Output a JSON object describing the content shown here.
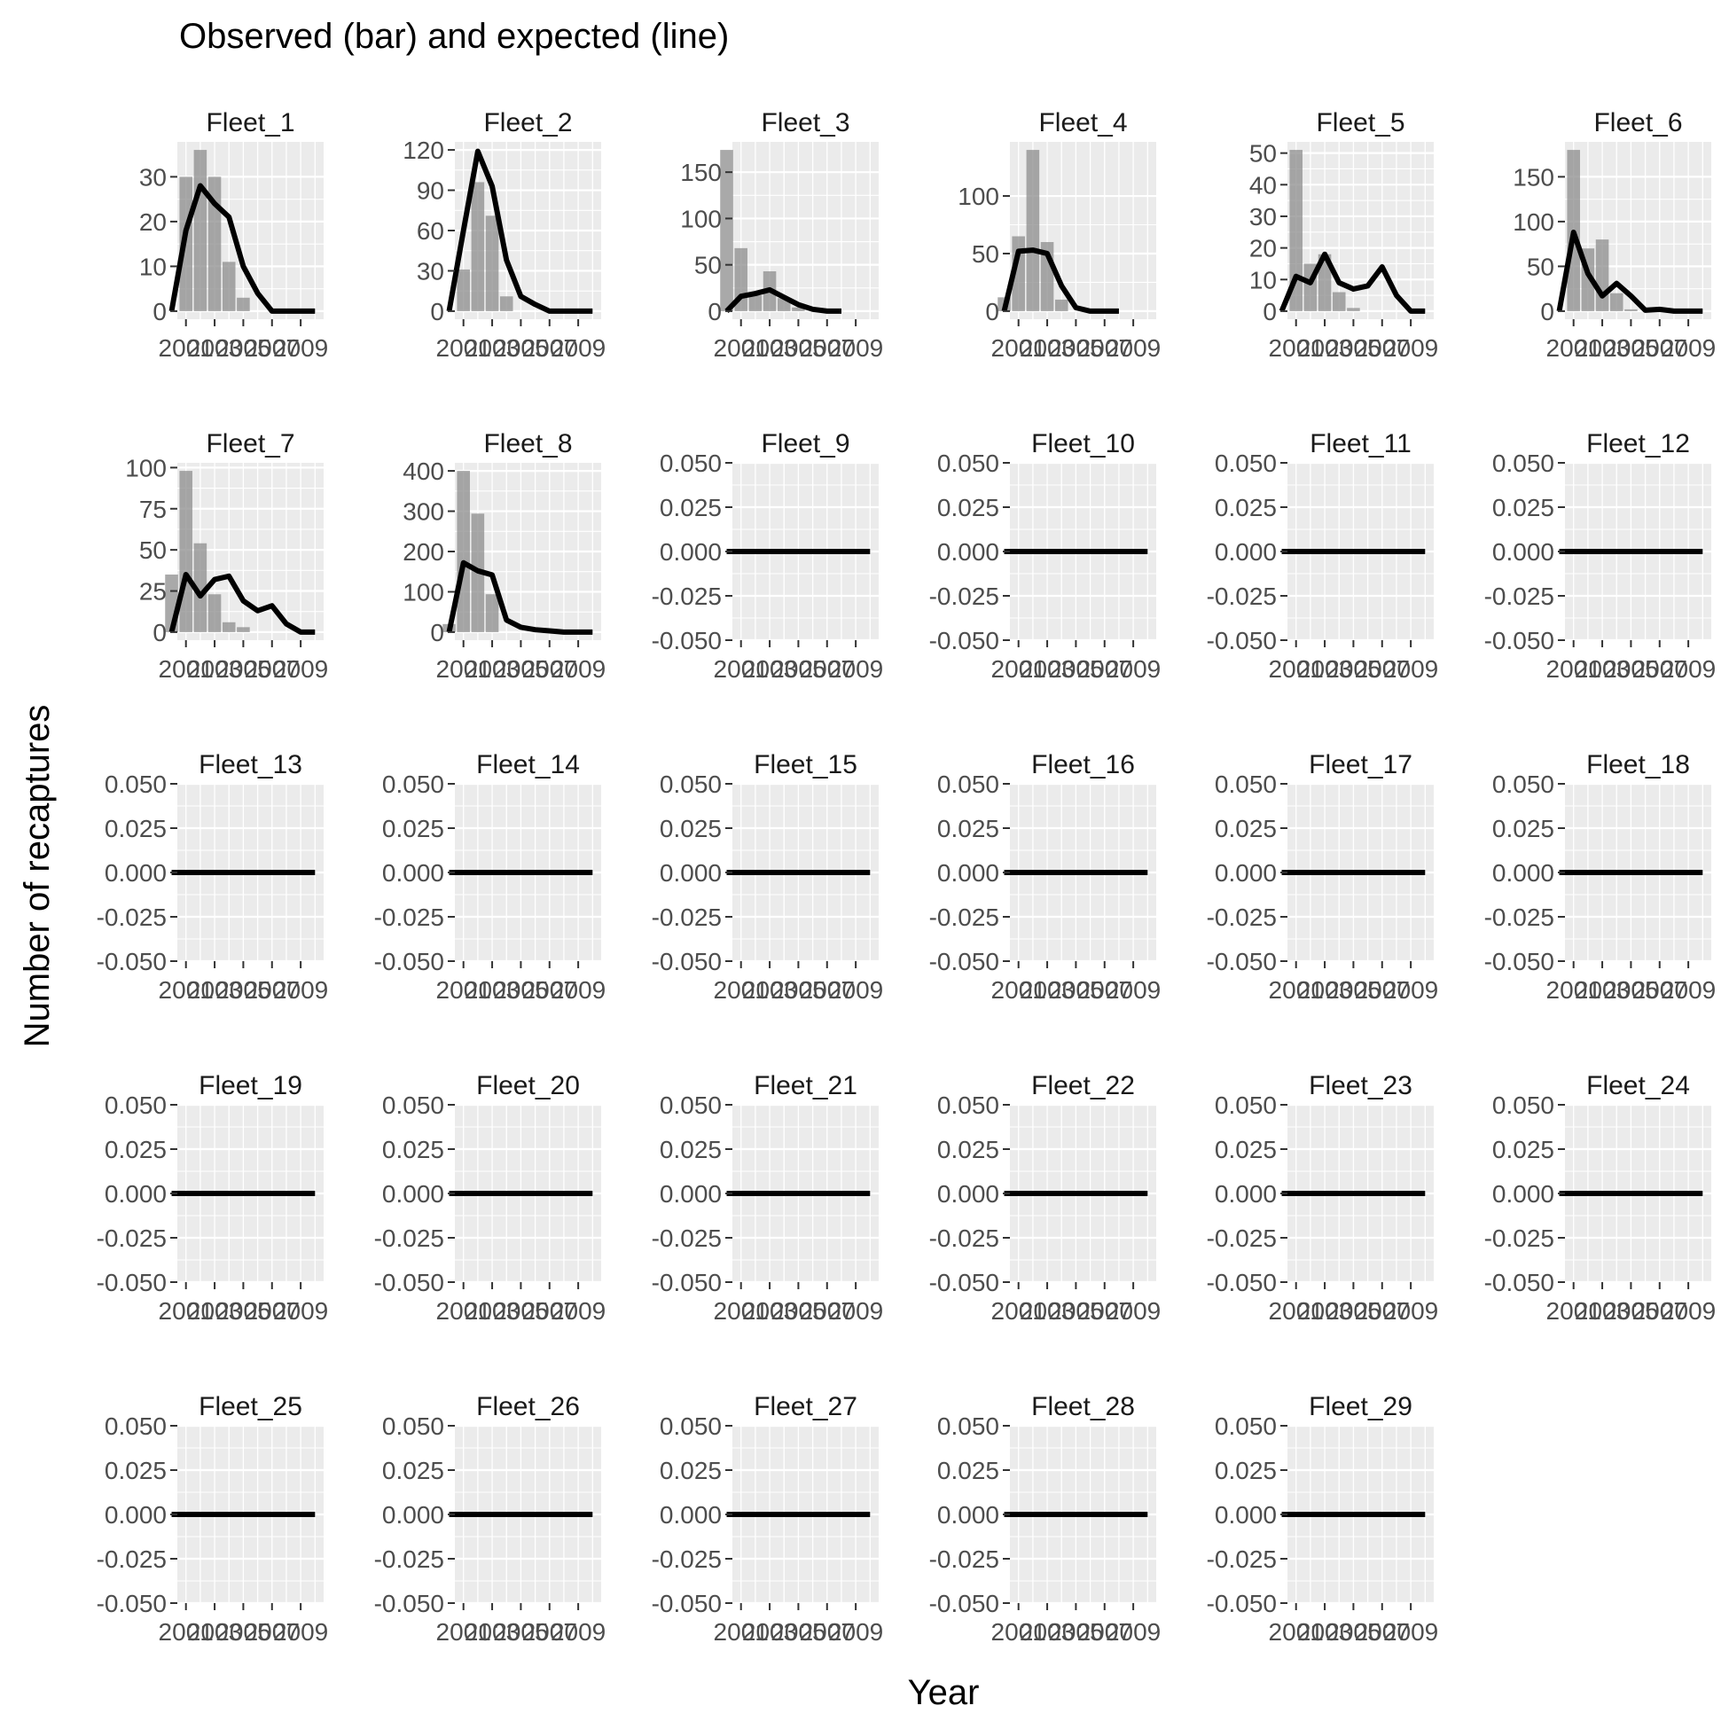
{
  "figure": {
    "title": "Observed (bar) and expected (line)",
    "xlabel": "Year",
    "ylabel": "Number of recaptures"
  },
  "colors": {
    "panel_background": "#ebebeb",
    "grid": "#ffffff",
    "bar_fill": "#8c8c8c",
    "line": "#000000",
    "tick_text": "#4d4d4d"
  },
  "chart_data": {
    "type": "bar",
    "layout": "facet_wrap",
    "facet_columns": 6,
    "x_tick_values": [
      2001,
      2003,
      2005,
      2007,
      2009
    ],
    "x_tick_labels": [
      "2001",
      "2003",
      "2005",
      "2007",
      "2009"
    ],
    "xlim": [
      2000.4,
      2010.6
    ],
    "overlay": "line",
    "grid": true,
    "legend": "none",
    "panels": [
      {
        "name": "Fleet_1",
        "years": [
          2000,
          2001,
          2002,
          2003,
          2004,
          2005,
          2006,
          2007,
          2008,
          2009,
          2010
        ],
        "observed": [
          0,
          30,
          36,
          30,
          11,
          3,
          0,
          0,
          0,
          0,
          0
        ],
        "expected": [
          0,
          18,
          28,
          24,
          21,
          10,
          4,
          0,
          0,
          0,
          0
        ],
        "ylim": [
          -1.8,
          37.8
        ],
        "y_ticks": [
          0,
          10,
          20,
          30
        ],
        "y_tick_labels": [
          "0",
          "10",
          "20",
          "30"
        ]
      },
      {
        "name": "Fleet_2",
        "years": [
          2000,
          2001,
          2002,
          2003,
          2004,
          2005,
          2006,
          2007,
          2008,
          2009,
          2010
        ],
        "observed": [
          0,
          31,
          96,
          71,
          11,
          0,
          0,
          0,
          0,
          0,
          0
        ],
        "expected": [
          0,
          60,
          119,
          93,
          38,
          11,
          5,
          0,
          0,
          0,
          0
        ],
        "ylim": [
          -6,
          126
        ],
        "y_ticks": [
          0,
          30,
          60,
          90,
          120
        ],
        "y_tick_labels": [
          "0",
          "30",
          "60",
          "90",
          "120"
        ]
      },
      {
        "name": "Fleet_3",
        "years": [
          2000,
          2001,
          2002,
          2003,
          2004,
          2005,
          2006,
          2007,
          2008
        ],
        "observed": [
          174,
          68,
          17,
          43,
          14,
          4,
          0,
          0,
          0
        ],
        "expected": [
          0,
          16,
          19,
          23,
          15,
          7,
          2,
          0,
          0
        ],
        "ylim": [
          -8.7,
          182.7
        ],
        "y_ticks": [
          0,
          50,
          100,
          150
        ],
        "y_tick_labels": [
          "0",
          "50",
          "100",
          "150"
        ]
      },
      {
        "name": "Fleet_4",
        "years": [
          2000,
          2001,
          2002,
          2003,
          2004,
          2005,
          2006,
          2007,
          2008
        ],
        "observed": [
          12,
          65,
          140,
          60,
          10,
          0,
          0,
          0,
          0
        ],
        "expected": [
          0,
          52,
          53,
          50,
          22,
          3,
          0,
          0,
          0
        ],
        "ylim": [
          -7,
          147
        ],
        "y_ticks": [
          0,
          50,
          100
        ],
        "y_tick_labels": [
          "0",
          "50",
          "100"
        ]
      },
      {
        "name": "Fleet_5",
        "years": [
          2000,
          2001,
          2002,
          2003,
          2004,
          2005,
          2006,
          2007,
          2008,
          2009,
          2010
        ],
        "observed": [
          0,
          51,
          15,
          18,
          6,
          1,
          0,
          0,
          0,
          0,
          0
        ],
        "expected": [
          0,
          11,
          9,
          18,
          9,
          7,
          8,
          14,
          5,
          0,
          0
        ],
        "ylim": [
          -2.55,
          53.55
        ],
        "y_ticks": [
          0,
          10,
          20,
          30,
          40,
          50
        ],
        "y_tick_labels": [
          "0",
          "10",
          "20",
          "30",
          "40",
          "50"
        ]
      },
      {
        "name": "Fleet_6",
        "years": [
          2000,
          2001,
          2002,
          2003,
          2004,
          2005,
          2006,
          2007,
          2008,
          2009,
          2010
        ],
        "observed": [
          0,
          180,
          70,
          80,
          20,
          2,
          0,
          0,
          0,
          0,
          0
        ],
        "expected": [
          0,
          88,
          42,
          17,
          31,
          17,
          1,
          2,
          0,
          0,
          0
        ],
        "ylim": [
          -9,
          189
        ],
        "y_ticks": [
          0,
          50,
          100,
          150
        ],
        "y_tick_labels": [
          "0",
          "50",
          "100",
          "150"
        ]
      },
      {
        "name": "Fleet_7",
        "years": [
          2000,
          2001,
          2002,
          2003,
          2004,
          2005,
          2006,
          2007,
          2008,
          2009,
          2010
        ],
        "observed": [
          35,
          98,
          54,
          23,
          6,
          3,
          0,
          0,
          0,
          0,
          0
        ],
        "expected": [
          0,
          35,
          22,
          32,
          34,
          19,
          13,
          16,
          5,
          0,
          0
        ],
        "ylim": [
          -4.9,
          102.9
        ],
        "y_ticks": [
          0,
          25,
          50,
          75,
          100
        ],
        "y_tick_labels": [
          "0",
          "25",
          "50",
          "75",
          "100"
        ]
      },
      {
        "name": "Fleet_8",
        "years": [
          2000,
          2001,
          2002,
          2003,
          2004,
          2005,
          2006,
          2007,
          2008,
          2009,
          2010
        ],
        "observed": [
          20,
          400,
          294,
          94,
          0,
          0,
          0,
          0,
          0,
          0,
          0
        ],
        "expected": [
          0,
          172,
          152,
          142,
          30,
          12,
          6,
          3,
          0,
          0,
          0
        ],
        "ylim": [
          -20,
          420
        ],
        "y_ticks": [
          0,
          100,
          200,
          300,
          400
        ],
        "y_tick_labels": [
          "0",
          "100",
          "200",
          "300",
          "400"
        ]
      },
      {
        "name": "Fleet_9"
      },
      {
        "name": "Fleet_10"
      },
      {
        "name": "Fleet_11"
      },
      {
        "name": "Fleet_12"
      },
      {
        "name": "Fleet_13"
      },
      {
        "name": "Fleet_14"
      },
      {
        "name": "Fleet_15"
      },
      {
        "name": "Fleet_16"
      },
      {
        "name": "Fleet_17"
      },
      {
        "name": "Fleet_18"
      },
      {
        "name": "Fleet_19"
      },
      {
        "name": "Fleet_20"
      },
      {
        "name": "Fleet_21"
      },
      {
        "name": "Fleet_22"
      },
      {
        "name": "Fleet_23"
      },
      {
        "name": "Fleet_24"
      },
      {
        "name": "Fleet_25"
      },
      {
        "name": "Fleet_26"
      },
      {
        "name": "Fleet_27"
      },
      {
        "name": "Fleet_28"
      },
      {
        "name": "Fleet_29"
      }
    ],
    "empty_panel_defaults": {
      "observed": [],
      "expected_value": 0,
      "ylim": [
        -0.05,
        0.05
      ],
      "y_ticks": [
        -0.05,
        -0.025,
        0,
        0.025,
        0.05
      ],
      "y_tick_labels": [
        "-0.050",
        "-0.025",
        "0.000",
        "0.025",
        "0.050"
      ]
    }
  }
}
